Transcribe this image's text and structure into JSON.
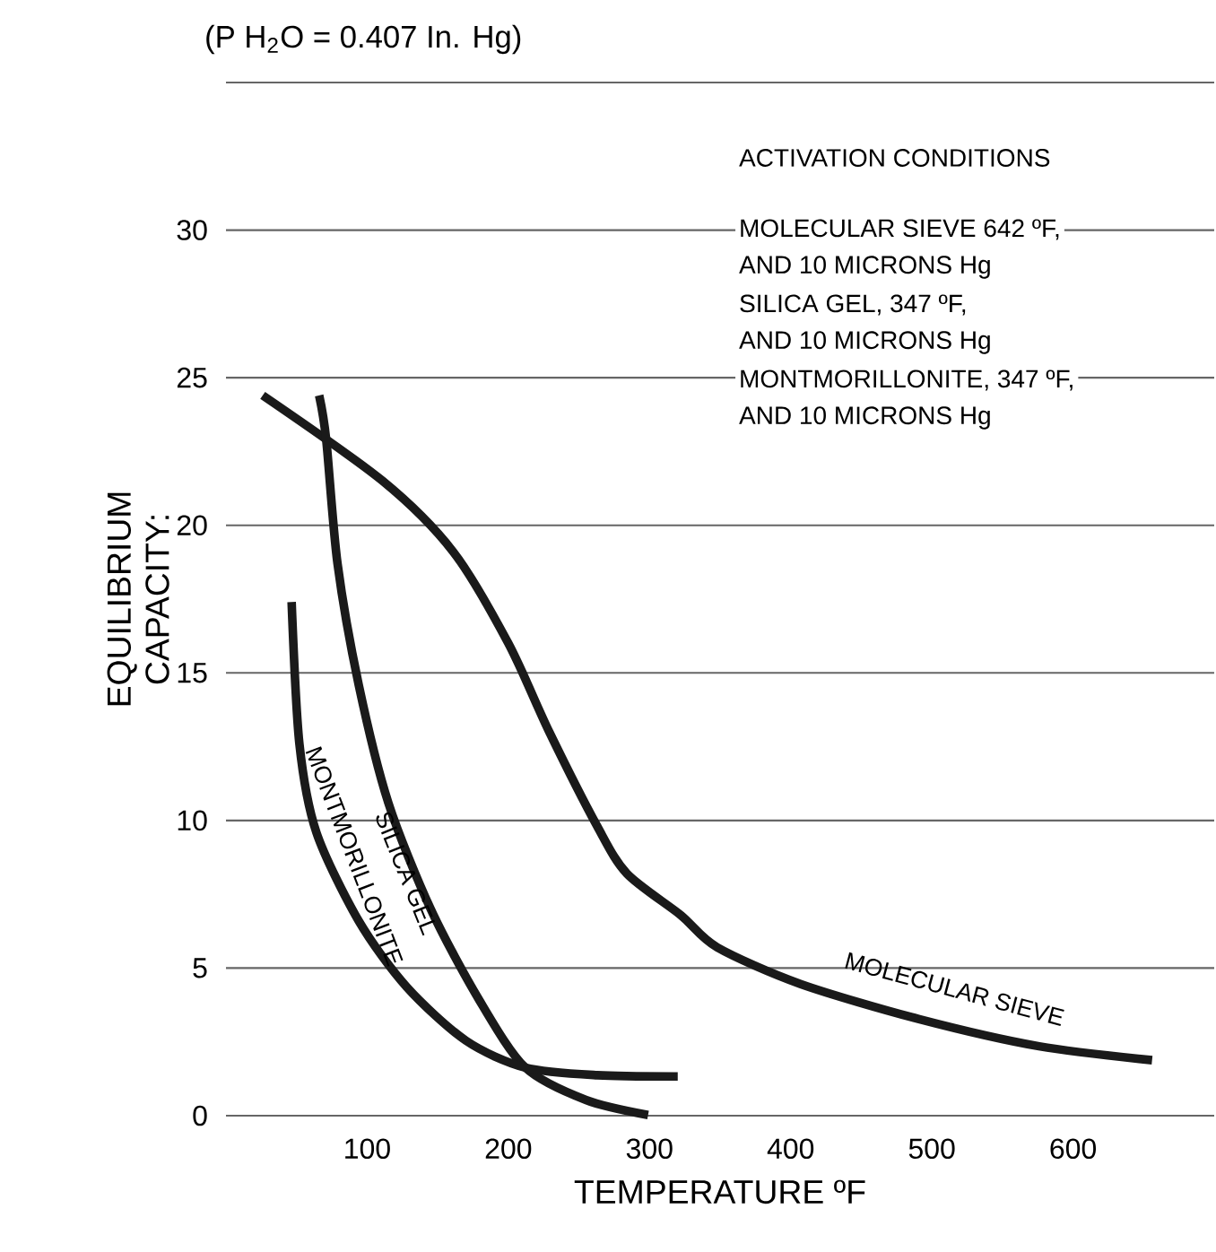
{
  "chart_data": {
    "type": "line",
    "title": "(P H$_{2}$O = 0.407 In. Hg)",
    "xlabel": "TEMPERATURE ºF",
    "ylabel": "EQUILIBRIUM CAPACITY:",
    "xlim": [
      0,
      700
    ],
    "ylim": [
      0,
      35
    ],
    "xticks": [
      100,
      200,
      300,
      400,
      500,
      600
    ],
    "yticks": [
      0,
      5,
      10,
      15,
      20,
      25,
      30,
      {
        "value": 35,
        "label": null
      }
    ],
    "grid": "y",
    "legend": false,
    "marker": "none",
    "line_style": "solid",
    "annotations": [
      "ACTIVATION CONDITIONS",
      "MOLECULAR SIEVE 642 ºF,",
      "AND 10 MICRONS Hg",
      "SILICA GEL, 347 ºF,",
      "AND 10 MICRONS Hg",
      "MONTMORILLONITE, 347 ºF,",
      "AND 10 MICRONS Hg"
    ],
    "series": [
      {
        "name": "MOLECULAR SIEVE",
        "color": "#1a1a1a",
        "x": [
          26,
          111,
          161,
          200,
          229,
          263,
          284,
          322,
          348,
          407,
          491,
          576,
          656
        ],
        "values": [
          24.4,
          21.5,
          19.1,
          16.0,
          13.0,
          9.8,
          8.2,
          6.8,
          5.7,
          4.46,
          3.27,
          2.35,
          1.88
        ]
      },
      {
        "name": "SILICA GEL",
        "color": "#1a1a1a",
        "x": [
          66,
          71,
          79,
          94,
          115,
          145,
          179,
          212,
          255,
          299
        ],
        "values": [
          24.4,
          22.9,
          18.7,
          14.6,
          10.6,
          7.0,
          3.95,
          1.63,
          0.53,
          0.02
        ]
      },
      {
        "name": "MONTMORILLONITE",
        "color": "#1a1a1a",
        "x": [
          46.5,
          52,
          64,
          94,
          128,
          170,
          212,
          263,
          320
        ],
        "values": [
          17.4,
          12.6,
          9.6,
          6.6,
          4.36,
          2.54,
          1.63,
          1.37,
          1.33
        ]
      }
    ]
  }
}
